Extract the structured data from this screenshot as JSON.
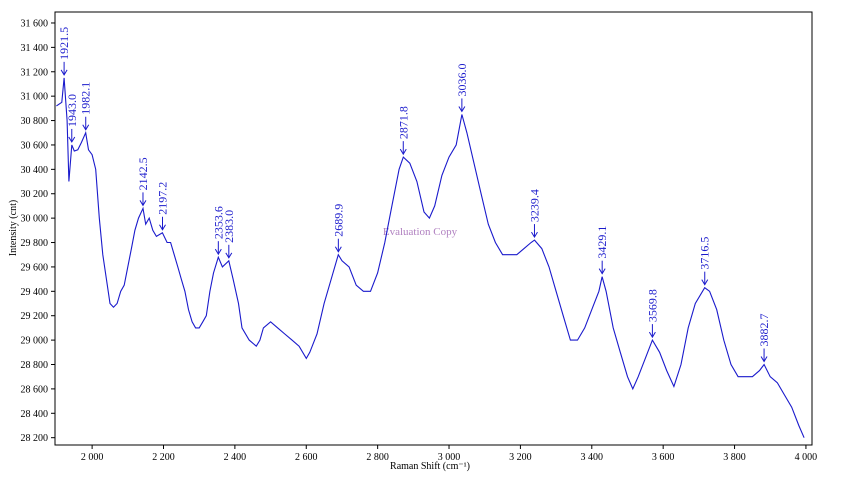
{
  "chart_data": {
    "type": "line",
    "x_label": "Raman Shift (cm⁻¹)",
    "y_label": "Intensity (cnt)",
    "watermark": "Evaluation Copy",
    "xlim": [
      1896,
      4017
    ],
    "ylim": [
      28140,
      31690
    ],
    "xticks": [
      {
        "value": 2000,
        "label": "2 000"
      },
      {
        "value": 2200,
        "label": "2 200"
      },
      {
        "value": 2400,
        "label": "2 400"
      },
      {
        "value": 2600,
        "label": "2 600"
      },
      {
        "value": 2800,
        "label": "2 800"
      },
      {
        "value": 3000,
        "label": "3 000"
      },
      {
        "value": 3200,
        "label": "3 200"
      },
      {
        "value": 3400,
        "label": "3 400"
      },
      {
        "value": 3600,
        "label": "3 600"
      },
      {
        "value": 3800,
        "label": "3 800"
      },
      {
        "value": 4000,
        "label": "4 000"
      }
    ],
    "yticks": [
      {
        "value": 28200,
        "label": "28 200"
      },
      {
        "value": 28400,
        "label": "28 400"
      },
      {
        "value": 28600,
        "label": "28 600"
      },
      {
        "value": 28800,
        "label": "28 800"
      },
      {
        "value": 29000,
        "label": "29 000"
      },
      {
        "value": 29200,
        "label": "29 200"
      },
      {
        "value": 29400,
        "label": "29 400"
      },
      {
        "value": 29600,
        "label": "29 600"
      },
      {
        "value": 29800,
        "label": "29 800"
      },
      {
        "value": 30000,
        "label": "30 000"
      },
      {
        "value": 30200,
        "label": "30 200"
      },
      {
        "value": 30400,
        "label": "30 400"
      },
      {
        "value": 30600,
        "label": "30 600"
      },
      {
        "value": 30800,
        "label": "30 800"
      },
      {
        "value": 31000,
        "label": "31 000"
      },
      {
        "value": 31200,
        "label": "31 200"
      },
      {
        "value": 31400,
        "label": "31 400"
      },
      {
        "value": 31600,
        "label": "31 600"
      }
    ],
    "color": "#1a1acc",
    "x": [
      1900,
      1915,
      1921.5,
      1930,
      1935,
      1943,
      1950,
      1960,
      1970,
      1982,
      1990,
      2000,
      2010,
      2020,
      2030,
      2040,
      2050,
      2060,
      2070,
      2080,
      2090,
      2100,
      2110,
      2120,
      2130,
      2142.5,
      2150,
      2160,
      2170,
      2180,
      2197,
      2210,
      2220,
      2230,
      2240,
      2250,
      2260,
      2270,
      2280,
      2290,
      2300,
      2310,
      2320,
      2330,
      2340,
      2353.6,
      2365,
      2383,
      2395,
      2410,
      2420,
      2440,
      2460,
      2470,
      2480,
      2500,
      2520,
      2540,
      2560,
      2580,
      2600,
      2610,
      2630,
      2650,
      2670,
      2689.9,
      2700,
      2720,
      2740,
      2760,
      2780,
      2800,
      2820,
      2840,
      2860,
      2871.8,
      2890,
      2910,
      2930,
      2945,
      2960,
      2980,
      3000,
      3020,
      3036,
      3050,
      3070,
      3090,
      3110,
      3130,
      3150,
      3170,
      3190,
      3210,
      3230,
      3239.4,
      3260,
      3280,
      3300,
      3320,
      3340,
      3360,
      3380,
      3400,
      3420,
      3429,
      3440,
      3460,
      3480,
      3500,
      3515,
      3530,
      3550,
      3569.8,
      3590,
      3610,
      3630,
      3650,
      3670,
      3690,
      3716.5,
      3730,
      3750,
      3770,
      3790,
      3810,
      3830,
      3850,
      3870,
      3882.7,
      3900,
      3920,
      3940,
      3960,
      3980,
      3995
    ],
    "values": [
      30920,
      30950,
      31150,
      30800,
      30300,
      30600,
      30550,
      30560,
      30620,
      30700,
      30560,
      30520,
      30400,
      30000,
      29700,
      29500,
      29300,
      29270,
      29300,
      29400,
      29450,
      29600,
      29750,
      29900,
      30000,
      30080,
      29950,
      30000,
      29900,
      29850,
      29880,
      29800,
      29800,
      29700,
      29600,
      29500,
      29400,
      29250,
      29150,
      29100,
      29100,
      29150,
      29200,
      29400,
      29550,
      29680,
      29600,
      29650,
      29500,
      29300,
      29100,
      29000,
      28950,
      29000,
      29100,
      29150,
      29100,
      29050,
      29000,
      28950,
      28850,
      28900,
      29050,
      29300,
      29500,
      29700,
      29650,
      29600,
      29450,
      29400,
      29400,
      29550,
      29800,
      30100,
      30400,
      30500,
      30450,
      30300,
      30050,
      30000,
      30100,
      30350,
      30500,
      30600,
      30850,
      30700,
      30450,
      30200,
      29950,
      29800,
      29700,
      29700,
      29700,
      29750,
      29800,
      29820,
      29750,
      29600,
      29400,
      29200,
      29000,
      29000,
      29100,
      29250,
      29400,
      29520,
      29400,
      29100,
      28900,
      28700,
      28600,
      28700,
      28850,
      29000,
      28900,
      28750,
      28620,
      28800,
      29100,
      29300,
      29430,
      29400,
      29250,
      29000,
      28800,
      28700,
      28700,
      28700,
      28750,
      28800,
      28700,
      28650,
      28550,
      28450,
      28300,
      28200
    ],
    "peaks": [
      {
        "x": 1921.5,
        "y": 31150,
        "label": "1921.5"
      },
      {
        "x": 1943,
        "y": 30600,
        "label": "1943.0"
      },
      {
        "x": 1982.1,
        "y": 30700,
        "label": "1982.1"
      },
      {
        "x": 2142.5,
        "y": 30080,
        "label": "2142.5"
      },
      {
        "x": 2197.2,
        "y": 29880,
        "label": "2197.2"
      },
      {
        "x": 2353.6,
        "y": 29680,
        "label": "2353.6"
      },
      {
        "x": 2383,
        "y": 29650,
        "label": "2383.0"
      },
      {
        "x": 2689.9,
        "y": 29700,
        "label": "2689.9"
      },
      {
        "x": 2871.8,
        "y": 30500,
        "label": "2871.8"
      },
      {
        "x": 3036,
        "y": 30850,
        "label": "3036.0"
      },
      {
        "x": 3239.4,
        "y": 29820,
        "label": "3239.4"
      },
      {
        "x": 3429.1,
        "y": 29520,
        "label": "3429.1"
      },
      {
        "x": 3569.8,
        "y": 29000,
        "label": "3569.8"
      },
      {
        "x": 3716.5,
        "y": 29430,
        "label": "3716.5"
      },
      {
        "x": 3882.7,
        "y": 28800,
        "label": "3882.7"
      }
    ]
  }
}
